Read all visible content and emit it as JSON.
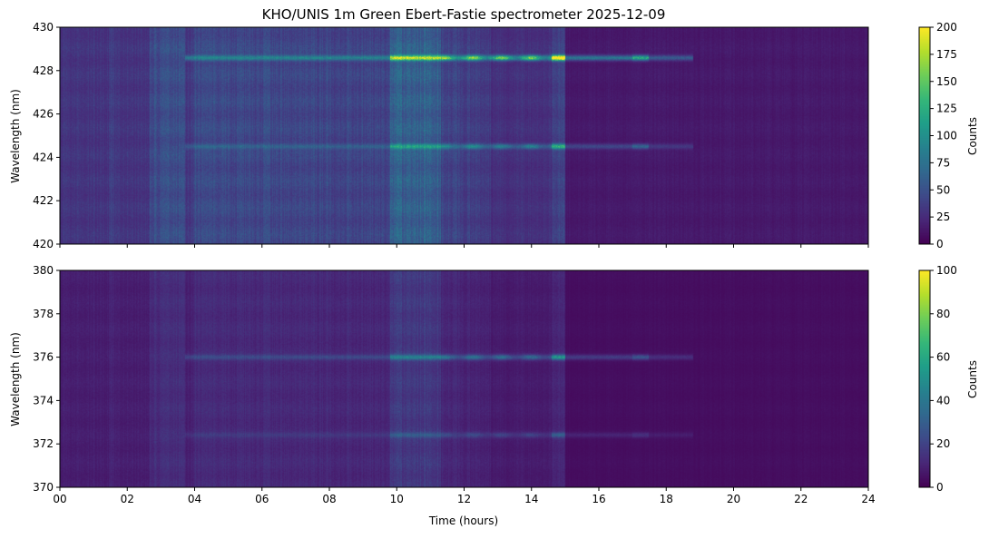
{
  "chart_data": {
    "type": "heatmap",
    "title": "KHO/UNIS 1m Green Ebert-Fastie spectrometer 2025-12-09",
    "colormap": "viridis",
    "xlabel": "Time (hours)",
    "xlim": [
      0,
      24
    ],
    "x_ticks": [
      "00",
      "02",
      "04",
      "06",
      "08",
      "10",
      "12",
      "14",
      "16",
      "18",
      "20",
      "22",
      "24"
    ],
    "panels": [
      {
        "id": "top",
        "ylabel": "Wavelength (nm)",
        "ylim": [
          420,
          430
        ],
        "y_ticks": [
          "420",
          "422",
          "424",
          "426",
          "428",
          "430"
        ],
        "colorbar": {
          "label": "Counts",
          "range": [
            0,
            200
          ],
          "ticks": [
            "0",
            "25",
            "50",
            "75",
            "100",
            "125",
            "150",
            "175",
            "200"
          ]
        },
        "emission_lines_nm": [
          428.6,
          424.5
        ],
        "description_values": {
          "background_counts": 55,
          "peak_counts": 200,
          "peak_time_h": 14.8
        }
      },
      {
        "id": "bottom",
        "ylabel": "Wavelength (nm)",
        "ylim": [
          370,
          380
        ],
        "y_ticks": [
          "370",
          "372",
          "374",
          "376",
          "378",
          "380"
        ],
        "colorbar": {
          "label": "Counts",
          "range": [
            0,
            100
          ],
          "ticks": [
            "0",
            "20",
            "40",
            "60",
            "80",
            "100"
          ]
        },
        "emission_lines_nm": [
          376.0,
          372.4
        ],
        "description_values": {
          "background_counts": 15,
          "peak_counts": 45,
          "peak_time_h": 14.8
        }
      }
    ]
  }
}
